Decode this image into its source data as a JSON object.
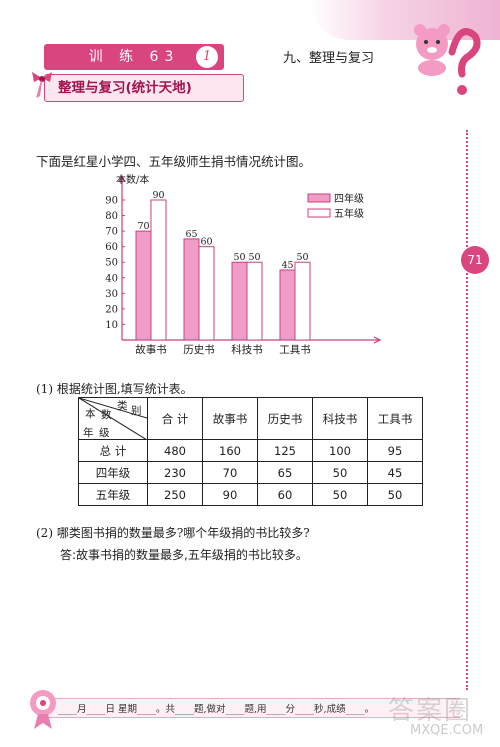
{
  "header": {
    "lesson_label": "训 练 63",
    "lesson_circle": "1",
    "subtitle": "整理与复习(统计天地)",
    "chapter": "九、整理与复习",
    "page_number": "71"
  },
  "intro": "下面是红星小学四、五年级师生捐书情况统计图。",
  "chart_data": {
    "type": "bar",
    "ylabel": "本数/本",
    "ylim": [
      0,
      90
    ],
    "yticks": [
      "10",
      "20",
      "30",
      "40",
      "50",
      "60",
      "70",
      "80",
      "90"
    ],
    "categories": [
      "故事书",
      "历史书",
      "科技书",
      "工具书"
    ],
    "series": [
      {
        "name": "四年级",
        "values": [
          70,
          65,
          50,
          45
        ],
        "color": "#ef9cc6"
      },
      {
        "name": "五年级",
        "values": [
          90,
          60,
          50,
          50
        ],
        "color": "#ffffff"
      }
    ],
    "value_labels": [
      [
        "70",
        "90"
      ],
      [
        "65",
        "60"
      ],
      [
        "50",
        "50"
      ],
      [
        "45",
        "50"
      ]
    ],
    "legend_position": "top-right",
    "bar_outline_color": "#c8407c"
  },
  "q1": {
    "text": "(1) 根据统计图,填写统计表。",
    "corner": {
      "top_a": "本",
      "top_b": "数",
      "top_c": "类",
      "top_d": "别",
      "bottom_a": "年",
      "bottom_b": "级"
    },
    "columns": [
      "合 计",
      "故事书",
      "历史书",
      "科技书",
      "工具书"
    ],
    "rows": [
      {
        "label": "总 计",
        "cells": [
          "480",
          "160",
          "125",
          "100",
          "95"
        ]
      },
      {
        "label": "四年级",
        "cells": [
          "230",
          "70",
          "65",
          "50",
          "45"
        ]
      },
      {
        "label": "五年级",
        "cells": [
          "250",
          "90",
          "60",
          "50",
          "50"
        ]
      }
    ]
  },
  "q2": {
    "text": "(2) 哪类图书捐的数量最多?哪个年级捐的书比较多?",
    "answer": "答:故事书捐的数量最多,五年级捐的书比较多。"
  },
  "footer": "____月____日 星期____。共____题,做对____题,用____分____秒,成绩____。",
  "watermark": {
    "text": "答案圈",
    "url": "MXQE.COM"
  }
}
